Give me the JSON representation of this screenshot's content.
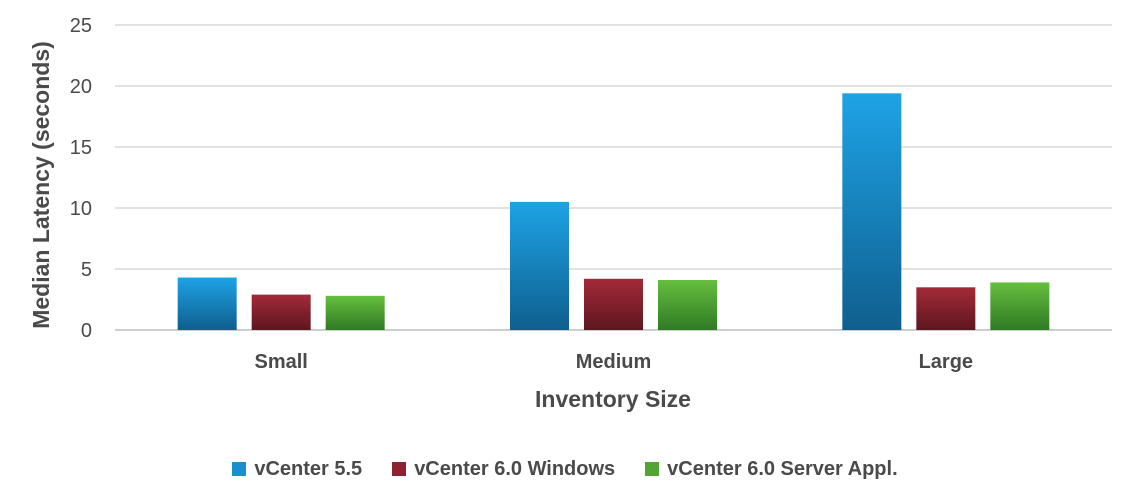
{
  "chart_data": {
    "type": "bar",
    "title": "",
    "xlabel": "Inventory Size",
    "ylabel": "Median Latency (seconds)",
    "ylim": [
      0,
      25
    ],
    "yticks": [
      0,
      5,
      10,
      15,
      20,
      25
    ],
    "grid": true,
    "legend_position": "bottom",
    "categories": [
      "Small",
      "Medium",
      "Large"
    ],
    "series": [
      {
        "name": "vCenter 5.5",
        "values": [
          4.3,
          10.5,
          19.4
        ],
        "color": "#1a8fd0"
      },
      {
        "name": "vCenter 6.0 Windows",
        "values": [
          2.9,
          4.2,
          3.5
        ],
        "color": "#8e2230"
      },
      {
        "name": "vCenter 6.0 Server Appl.",
        "values": [
          2.8,
          4.1,
          3.9
        ],
        "color": "#52a534"
      }
    ]
  }
}
